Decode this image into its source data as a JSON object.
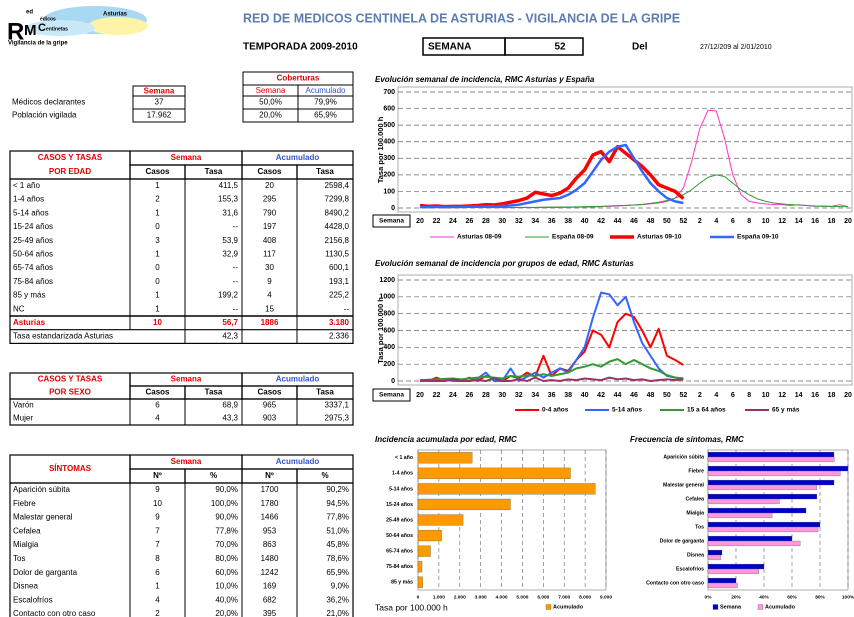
{
  "header": {
    "logo_r": "R",
    "logo_ed": "ed",
    "logo_m": "M",
    "logo_edicos": "édicos",
    "logo_c": "C",
    "logo_entinelas": "entinetas",
    "logo_region": "Asturias",
    "logo_subtitle": "Vigilancia de la gripe",
    "title": "RED DE MEDICOS CENTINELA DE ASTURIAS - VIGILANCIA DE LA GRIPE",
    "season": "TEMPORADA 2009-2010",
    "week_label": "SEMANA",
    "week": "52",
    "from_label": "Del",
    "dates": "27/12/209 al 2/01/2010"
  },
  "doctors_table": {
    "header": "Semana",
    "rows": [
      [
        "Médicos declarantes",
        "37"
      ],
      [
        "Población vigilada",
        "17.962"
      ]
    ]
  },
  "coverage_table": {
    "title": "Coberturas",
    "columns": [
      "Semana",
      "Acumulado"
    ],
    "rows": [
      [
        "50,0%",
        "79,9%"
      ],
      [
        "20,0%",
        "65,9%"
      ]
    ]
  },
  "age_table": {
    "title": [
      "CASOS Y TASAS",
      "POR EDAD"
    ],
    "groups": [
      "Semana",
      "Acumulado"
    ],
    "columns": [
      "Casos",
      "Tasa",
      "Casos",
      "Tasa"
    ],
    "rows": [
      [
        "< 1 año",
        "1",
        "411,5",
        "20",
        "2598,4"
      ],
      [
        "1-4 años",
        "2",
        "155,3",
        "295",
        "7299,8"
      ],
      [
        "5-14 años",
        "1",
        "31,6",
        "790",
        "8490,2"
      ],
      [
        "15-24 años",
        "0",
        "--",
        "197",
        "4428,0"
      ],
      [
        "25-49 años",
        "3",
        "53,9",
        "408",
        "2156,8"
      ],
      [
        "50-64 años",
        "1",
        "32,9",
        "117",
        "1130,5"
      ],
      [
        "65-74 años",
        "0",
        "--",
        "30",
        "600,1"
      ],
      [
        "75-84 años",
        "0",
        "--",
        "9",
        "193,1"
      ],
      [
        "85 y más",
        "1",
        "199,2",
        "4",
        "225,2"
      ],
      [
        "NC",
        "1",
        "--",
        "15",
        "--"
      ]
    ],
    "total": [
      "Asturias",
      "10",
      "56,7",
      "1886",
      "3.180"
    ],
    "standardized": [
      "Tasa estandarizada Asturias",
      "42,3",
      "2.336"
    ]
  },
  "sex_table": {
    "title": [
      "CASOS Y TASAS",
      "POR SEXO"
    ],
    "groups": [
      "Semana",
      "Acumulado"
    ],
    "columns": [
      "Casos",
      "Tasa",
      "Casos",
      "Tasa"
    ],
    "rows": [
      [
        "Varón",
        "6",
        "68,9",
        "965",
        "3337,1"
      ],
      [
        "Mujer",
        "4",
        "43,3",
        "903",
        "2975,3"
      ]
    ]
  },
  "symptoms_table": {
    "title": "SÍNTOMAS",
    "groups": [
      "Semana",
      "Acumulado"
    ],
    "columns": [
      "Nº",
      "%",
      "Nº",
      "%"
    ],
    "rows": [
      [
        "Aparición súbita",
        "9",
        "90,0%",
        "1700",
        "90,2%"
      ],
      [
        "Fiebre",
        "10",
        "100,0%",
        "1780",
        "94,5%"
      ],
      [
        "Malestar general",
        "9",
        "90,0%",
        "1466",
        "77,8%"
      ],
      [
        "Cefalea",
        "7",
        "77,8%",
        "953",
        "51,0%"
      ],
      [
        "Mialgia",
        "7",
        "70,0%",
        "863",
        "45,8%"
      ],
      [
        "Tos",
        "8",
        "80,0%",
        "1480",
        "78,6%"
      ],
      [
        "Dolor de garganta",
        "6",
        "60,0%",
        "1242",
        "65,9%"
      ],
      [
        "Disnea",
        "1",
        "10,0%",
        "169",
        "9,0%"
      ],
      [
        "Escalofríos",
        "4",
        "40,0%",
        "682",
        "36,2%"
      ],
      [
        "Contacto con otro caso",
        "2",
        "20,0%",
        "395",
        "21,0%"
      ]
    ]
  },
  "chart_data": [
    {
      "type": "line",
      "title": "Evolución semanal de incidencia, RMC Asturias y España",
      "y_label": "Tasa por 100.000 h",
      "x_label": "Semana",
      "categories": [
        20,
        null,
        22,
        null,
        24,
        null,
        26,
        null,
        28,
        null,
        30,
        null,
        32,
        null,
        34,
        null,
        36,
        null,
        38,
        null,
        40,
        null,
        42,
        null,
        44,
        null,
        46,
        null,
        48,
        null,
        50,
        null,
        52,
        null,
        2,
        null,
        4,
        null,
        6,
        null,
        8,
        null,
        10,
        null,
        12,
        null,
        14,
        null,
        16,
        null,
        18,
        null,
        20
      ],
      "ylim": [
        0,
        700
      ],
      "yticks": [
        0,
        100,
        200,
        300,
        400,
        500,
        600,
        700
      ],
      "grid": true,
      "series": [
        {
          "name": "Asturias 08-09",
          "color": "#ff33cc",
          "width": 1,
          "values": [
            10,
            8,
            6,
            5,
            5,
            4,
            3,
            3,
            2,
            3,
            2,
            2,
            3,
            3,
            2,
            3,
            4,
            3,
            4,
            5,
            5,
            6,
            8,
            10,
            12,
            15,
            18,
            20,
            25,
            30,
            40,
            60,
            120,
            280,
            480,
            590,
            585,
            420,
            200,
            80,
            40,
            30,
            25,
            20,
            20,
            15,
            20,
            15,
            10,
            12,
            10,
            20,
            8
          ]
        },
        {
          "name": "España 08-09",
          "color": "#339933",
          "width": 1,
          "values": [
            5,
            5,
            4,
            4,
            4,
            3,
            3,
            3,
            3,
            3,
            3,
            3,
            4,
            4,
            4,
            5,
            5,
            6,
            6,
            7,
            8,
            9,
            10,
            12,
            14,
            16,
            18,
            22,
            28,
            35,
            45,
            60,
            80,
            110,
            150,
            185,
            200,
            190,
            150,
            110,
            80,
            55,
            40,
            30,
            25,
            20,
            18,
            15,
            12,
            10,
            10,
            8,
            8
          ]
        },
        {
          "name": "Asturias 09-10",
          "color": "#ff0000",
          "width": 3.5,
          "values": [
            15,
            10,
            12,
            8,
            10,
            10,
            12,
            15,
            20,
            18,
            25,
            35,
            45,
            60,
            95,
            85,
            75,
            90,
            120,
            180,
            230,
            320,
            340,
            280,
            370,
            330,
            290,
            250,
            200,
            140,
            120,
            100,
            57,
            null,
            null,
            null,
            null,
            null,
            null,
            null,
            null,
            null,
            null,
            null,
            null,
            null,
            null,
            null,
            null,
            null,
            null,
            null,
            null
          ]
        },
        {
          "name": "España 09-10",
          "color": "#3366ff",
          "width": 2.5,
          "values": [
            5,
            5,
            6,
            6,
            7,
            7,
            8,
            8,
            9,
            10,
            12,
            15,
            20,
            30,
            40,
            50,
            55,
            60,
            80,
            110,
            150,
            220,
            290,
            340,
            370,
            380,
            300,
            220,
            150,
            100,
            60,
            40,
            30,
            null,
            null,
            null,
            null,
            null,
            null,
            null,
            null,
            null,
            null,
            null,
            null,
            null,
            null,
            null,
            null,
            null,
            null,
            null,
            null
          ]
        }
      ]
    },
    {
      "type": "line",
      "title": "Evolución semanal de incidencia por grupos de edad, RMC Asturias",
      "y_label": "Tasa por 100.000 h",
      "x_label": "Semana",
      "categories": [
        20,
        null,
        22,
        null,
        24,
        null,
        26,
        null,
        28,
        null,
        30,
        null,
        32,
        null,
        34,
        null,
        36,
        null,
        38,
        null,
        40,
        null,
        42,
        null,
        44,
        null,
        46,
        null,
        48,
        null,
        50,
        null,
        52,
        null,
        2,
        null,
        4,
        null,
        6,
        null,
        8,
        null,
        10,
        null,
        12,
        null,
        14,
        null,
        16,
        null,
        18,
        null,
        20
      ],
      "ylim": [
        0,
        1200
      ],
      "yticks": [
        0,
        200,
        400,
        600,
        800,
        1000,
        1200
      ],
      "grid": true,
      "series": [
        {
          "name": "0-4 años",
          "color": "#ff0000",
          "width": 2,
          "values": [
            0,
            0,
            40,
            0,
            30,
            0,
            40,
            0,
            60,
            30,
            0,
            60,
            30,
            100,
            50,
            300,
            60,
            150,
            120,
            250,
            350,
            600,
            550,
            400,
            700,
            800,
            760,
            600,
            400,
            620,
            300,
            250,
            190,
            null,
            null,
            null,
            null,
            null,
            null,
            null,
            null,
            null,
            null,
            null,
            null,
            null,
            null,
            null,
            null,
            null,
            null,
            null,
            null
          ]
        },
        {
          "name": "5-14 años",
          "color": "#3366ff",
          "width": 2,
          "values": [
            0,
            0,
            0,
            20,
            0,
            0,
            0,
            30,
            100,
            0,
            0,
            150,
            0,
            50,
            100,
            40,
            100,
            150,
            100,
            250,
            400,
            750,
            1050,
            1030,
            900,
            1000,
            700,
            450,
            300,
            150,
            60,
            40,
            30,
            null,
            null,
            null,
            null,
            null,
            null,
            null,
            null,
            null,
            null,
            null,
            null,
            null,
            null,
            null,
            null,
            null,
            null,
            null,
            null
          ]
        },
        {
          "name": "15 a 64 años",
          "color": "#339933",
          "width": 2,
          "values": [
            10,
            15,
            20,
            25,
            30,
            20,
            30,
            40,
            50,
            40,
            30,
            60,
            50,
            70,
            60,
            80,
            60,
            80,
            100,
            150,
            170,
            200,
            170,
            230,
            260,
            200,
            250,
            200,
            150,
            120,
            70,
            40,
            30,
            null,
            null,
            null,
            null,
            null,
            null,
            null,
            null,
            null,
            null,
            null,
            null,
            null,
            null,
            null,
            null,
            null,
            null,
            null,
            null
          ]
        },
        {
          "name": "65 y más",
          "color": "#993366",
          "width": 2,
          "values": [
            0,
            10,
            0,
            0,
            20,
            0,
            0,
            10,
            0,
            30,
            0,
            0,
            20,
            0,
            40,
            0,
            10,
            0,
            20,
            10,
            30,
            20,
            10,
            40,
            20,
            30,
            10,
            20,
            0,
            10,
            20,
            10,
            20,
            null,
            null,
            null,
            null,
            null,
            null,
            null,
            null,
            null,
            null,
            null,
            null,
            null,
            null,
            null,
            null,
            null,
            null,
            null,
            null
          ]
        }
      ]
    },
    {
      "type": "hbar",
      "title": "Incidencia acumulada por edad, RMC",
      "x_label": "Tasa por 100.000 h",
      "categories": [
        "< 1 año",
        "1-4 años",
        "5-14 años",
        "15-24 años",
        "25-49 años",
        "50-64 años",
        "65-74 años",
        "75-84 años",
        "85 y más"
      ],
      "xlim": [
        0,
        9000
      ],
      "xticks": [
        0,
        {
          "value": 1000,
          "label": "1.000"
        },
        {
          "value": 2000,
          "label": "2.000"
        },
        {
          "value": 3000,
          "label": "3.000"
        },
        {
          "value": 4000,
          "label": "4.000"
        },
        {
          "value": 5000,
          "label": "5.000"
        },
        {
          "value": 6000,
          "label": "6.000"
        },
        {
          "value": 7000,
          "label": "7.000"
        },
        {
          "value": 8000,
          "label": "8.000"
        },
        {
          "value": 9000,
          "label": "9.000"
        }
      ],
      "grid": true,
      "series": [
        {
          "name": "Acumulado",
          "color": "#ff9900",
          "values": [
            2598.4,
            7299.8,
            8490.2,
            4428.0,
            2156.8,
            1130.5,
            600.1,
            193.1,
            225.2
          ]
        }
      ]
    },
    {
      "type": "hbar",
      "title": "Frecuencia de síntomas, RMC",
      "categories": [
        "Aparición súbita",
        "Fiebre",
        "Malestar general",
        "Cefalea",
        "Mialgia",
        "Tos",
        "Dolor de garganta",
        "Disnea",
        "Escalofríos",
        "Contacto con otro caso"
      ],
      "xlim": [
        0,
        100
      ],
      "xticks": [
        {
          "value": 0,
          "label": "0%"
        },
        {
          "value": 20,
          "label": "20%"
        },
        {
          "value": 40,
          "label": "40%"
        },
        {
          "value": 60,
          "label": "60%"
        },
        {
          "value": 80,
          "label": "80%"
        },
        {
          "value": 100,
          "label": "100%"
        }
      ],
      "grid": true,
      "series": [
        {
          "name": "Semana",
          "color": "#0000cc",
          "values": [
            90,
            100,
            90,
            77.8,
            70,
            80,
            60,
            10,
            40,
            20
          ]
        },
        {
          "name": "Acumulado",
          "color": "#ff99dd",
          "values": [
            90.2,
            94.5,
            77.8,
            51,
            45.8,
            78.6,
            65.9,
            9,
            36.2,
            21
          ]
        }
      ]
    }
  ]
}
